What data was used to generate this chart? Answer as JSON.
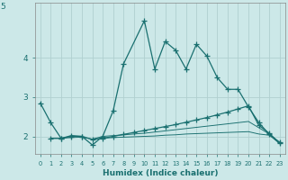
{
  "background_color": "#cce8e8",
  "grid_color": "#b0d0d0",
  "line_color": "#1a7070",
  "xlabel": "Humidex (Indice chaleur)",
  "x_ticks": [
    0,
    1,
    2,
    3,
    4,
    5,
    6,
    7,
    8,
    9,
    10,
    11,
    12,
    13,
    14,
    15,
    16,
    17,
    18,
    19,
    20,
    21,
    22,
    23
  ],
  "y_ticks": [
    2,
    3,
    4
  ],
  "ylim": [
    1.55,
    5.4
  ],
  "xlim": [
    -0.5,
    23.5
  ],
  "series1_x": [
    0,
    1,
    2,
    3,
    4,
    5,
    6,
    7,
    8,
    10,
    11,
    12,
    13,
    14,
    15,
    16,
    17,
    18,
    19,
    20,
    21,
    22,
    23
  ],
  "series1_y": [
    2.85,
    2.35,
    1.95,
    2.02,
    2.0,
    1.78,
    2.0,
    2.65,
    3.85,
    4.95,
    3.72,
    4.42,
    4.2,
    3.72,
    4.35,
    4.05,
    3.5,
    3.2,
    3.2,
    2.75,
    2.35,
    2.05,
    1.85
  ],
  "series2_x": [
    1,
    2,
    3,
    4,
    5,
    6,
    7,
    8,
    9,
    10,
    11,
    12,
    13,
    14,
    15,
    16,
    17,
    18,
    19,
    20,
    21,
    22,
    23
  ],
  "series2_y": [
    1.95,
    1.95,
    2.0,
    2.0,
    1.92,
    1.95,
    2.0,
    2.05,
    2.1,
    2.15,
    2.2,
    2.25,
    2.3,
    2.36,
    2.42,
    2.48,
    2.55,
    2.62,
    2.7,
    2.78,
    2.28,
    2.08,
    1.82
  ],
  "series3_x": [
    1,
    2,
    3,
    4,
    5,
    6,
    7,
    8,
    9,
    10,
    11,
    12,
    13,
    14,
    15,
    16,
    17,
    18,
    19,
    20,
    21,
    22,
    23
  ],
  "series3_y": [
    1.95,
    1.95,
    1.97,
    1.98,
    1.93,
    1.95,
    1.97,
    1.98,
    1.99,
    2.0,
    2.01,
    2.03,
    2.04,
    2.06,
    2.07,
    2.08,
    2.09,
    2.1,
    2.11,
    2.12,
    2.06,
    2.03,
    1.82
  ],
  "series4_x": [
    5,
    6,
    7,
    8,
    9,
    10,
    11,
    12,
    13,
    14,
    15,
    16,
    17,
    18,
    19,
    20,
    21,
    22,
    23
  ],
  "series4_y": [
    1.93,
    2.0,
    2.02,
    2.04,
    2.06,
    2.08,
    2.11,
    2.14,
    2.17,
    2.2,
    2.23,
    2.26,
    2.29,
    2.32,
    2.35,
    2.38,
    2.22,
    2.06,
    1.82
  ],
  "marker": "+",
  "markersize": 4,
  "linewidth": 0.9,
  "title_y_label": "5"
}
